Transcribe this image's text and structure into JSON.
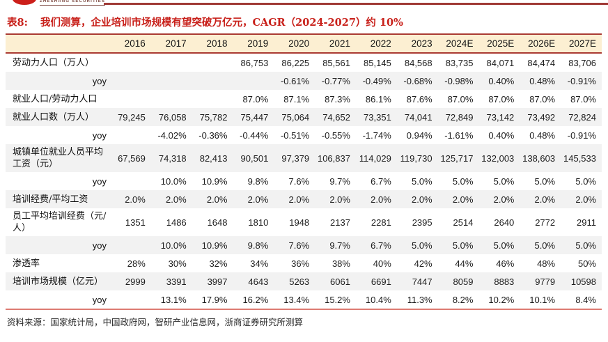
{
  "logo": {
    "brand": "ZHESHANG SECURITIES"
  },
  "title": {
    "tag": "表8:",
    "text": "我们测算，企业培训市场规模有望突破万亿元，CAGR（2024-2027）约 10%"
  },
  "table": {
    "columns": [
      "2016",
      "2017",
      "2018",
      "2019",
      "2020",
      "2021",
      "2022",
      "2023",
      "2024E",
      "2025E",
      "2026E",
      "2027E"
    ],
    "rows": [
      {
        "label": "劳动力人口（万人）",
        "values": [
          "",
          "",
          "",
          "86,753",
          "86,225",
          "85,561",
          "85,145",
          "84,568",
          "83,735",
          "84,071",
          "84,474",
          "83,706"
        ]
      },
      {
        "label": "yoy",
        "values": [
          "",
          "",
          "",
          "",
          "-0.61%",
          "-0.77%",
          "-0.49%",
          "-0.68%",
          "-0.98%",
          "0.40%",
          "0.48%",
          "-0.91%"
        ]
      },
      {
        "label": "就业人口/劳动力人口",
        "values": [
          "",
          "",
          "",
          "87.0%",
          "87.1%",
          "87.3%",
          "86.1%",
          "87.6%",
          "87.0%",
          "87.0%",
          "87.0%",
          "87.0%"
        ]
      },
      {
        "label": "就业人口数（万人）",
        "values": [
          "79,245",
          "76,058",
          "75,782",
          "75,447",
          "75,064",
          "74,652",
          "73,351",
          "74,041",
          "72,849",
          "73,142",
          "73,492",
          "72,824"
        ]
      },
      {
        "label": "yoy",
        "values": [
          "",
          "-4.02%",
          "-0.36%",
          "-0.44%",
          "-0.51%",
          "-0.55%",
          "-1.74%",
          "0.94%",
          "-1.61%",
          "0.40%",
          "0.48%",
          "-0.91%"
        ]
      },
      {
        "label": "城镇单位就业人员平均工资（元）",
        "values": [
          "67,569",
          "74,318",
          "82,413",
          "90,501",
          "97,379",
          "106,837",
          "114,029",
          "119,730",
          "125,717",
          "132,003",
          "138,603",
          "145,533"
        ]
      },
      {
        "label": "yoy",
        "values": [
          "",
          "10.0%",
          "10.9%",
          "9.8%",
          "7.6%",
          "9.7%",
          "6.7%",
          "5.0%",
          "5.0%",
          "5.0%",
          "5.0%",
          "5.0%"
        ]
      },
      {
        "label": "培训经费/平均工资",
        "values": [
          "2.0%",
          "2.0%",
          "2.0%",
          "2.0%",
          "2.0%",
          "2.0%",
          "2.0%",
          "2.0%",
          "2.0%",
          "2.0%",
          "2.0%",
          "2.0%"
        ]
      },
      {
        "label": "员工平均培训经费（元/人）",
        "values": [
          "1351",
          "1486",
          "1648",
          "1810",
          "1948",
          "2137",
          "2281",
          "2395",
          "2514",
          "2640",
          "2772",
          "2911"
        ]
      },
      {
        "label": "yoy",
        "values": [
          "",
          "10.0%",
          "10.9%",
          "9.8%",
          "7.6%",
          "9.7%",
          "6.7%",
          "5.0%",
          "5.0%",
          "5.0%",
          "5.0%",
          "5.0%"
        ]
      },
      {
        "label": "渗透率",
        "values": [
          "28%",
          "30%",
          "32%",
          "34%",
          "36%",
          "38%",
          "40%",
          "42%",
          "44%",
          "46%",
          "48%",
          "50%"
        ]
      },
      {
        "label": "培训市场规模（亿元）",
        "values": [
          "2999",
          "3391",
          "3997",
          "4643",
          "5263",
          "6061",
          "6691",
          "7447",
          "8059",
          "8883",
          "9779",
          "10598"
        ]
      },
      {
        "label": "yoy",
        "values": [
          "",
          "13.1%",
          "17.9%",
          "16.2%",
          "13.4%",
          "15.2%",
          "10.4%",
          "11.3%",
          "8.2%",
          "10.2%",
          "10.1%",
          "8.4%"
        ]
      }
    ]
  },
  "footer": {
    "source": "资料来源：国家统计局，中国政府网，智研产业信息网，浙商证券研究所测算"
  },
  "colors": {
    "title_red": "#c8201a",
    "header_background": "#fcefd2",
    "header_border_red": "#aa3a32",
    "stripe_gray": "#f2f2f2",
    "bottom_rule_red": "#dd7b72",
    "logo_red": "#cc1f1a",
    "brand_text": "#7d4a42"
  }
}
